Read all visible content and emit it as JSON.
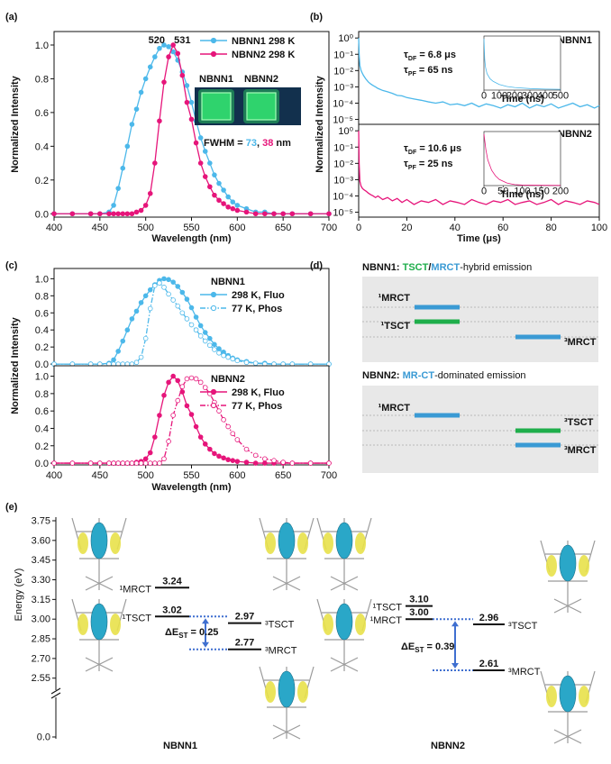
{
  "chart_data": [
    {
      "type": "line",
      "label": "(a)",
      "xlabel": "Wavelength (nm)",
      "ylabel": "Normalized Intensity",
      "xlim": [
        400,
        700
      ],
      "xticks": [
        400,
        450,
        500,
        550,
        600,
        650,
        700
      ],
      "ylim": [
        -0.02,
        1.08
      ],
      "yticks": [
        {
          "value": 0,
          "label": "0.0"
        },
        0.2,
        0.4,
        0.6,
        0.8,
        {
          "value": 1,
          "label": "1.0"
        }
      ],
      "legend": "upper right",
      "x": [
        400,
        420,
        440,
        450,
        460,
        465,
        470,
        475,
        480,
        485,
        490,
        495,
        500,
        505,
        510,
        515,
        520,
        525,
        530,
        535,
        540,
        545,
        550,
        555,
        560,
        565,
        570,
        575,
        580,
        585,
        590,
        595,
        600,
        610,
        620,
        630,
        640,
        650,
        660,
        680,
        700
      ],
      "series": [
        {
          "name": "NBNN1 298 K",
          "color": "#4cb8ea",
          "marker": "filled",
          "values": [
            0,
            0,
            0,
            0,
            0.01,
            0.05,
            0.15,
            0.27,
            0.4,
            0.53,
            0.62,
            0.72,
            0.8,
            0.87,
            0.93,
            0.98,
            1.0,
            0.99,
            0.96,
            0.91,
            0.84,
            0.76,
            0.66,
            0.55,
            0.45,
            0.37,
            0.3,
            0.23,
            0.18,
            0.14,
            0.1,
            0.07,
            0.05,
            0.03,
            0.01,
            0.01,
            0,
            0,
            0,
            0,
            0
          ]
        },
        {
          "name": "NBNN2 298 K",
          "color": "#e6157a",
          "marker": "filled",
          "values": [
            0,
            0,
            0,
            0,
            0,
            0,
            0,
            0,
            0,
            0,
            0.01,
            0.02,
            0.05,
            0.12,
            0.3,
            0.55,
            0.78,
            0.93,
            1.0,
            0.95,
            0.82,
            0.66,
            0.56,
            0.42,
            0.3,
            0.22,
            0.16,
            0.11,
            0.08,
            0.06,
            0.04,
            0.03,
            0.02,
            0.01,
            0,
            0,
            0,
            0,
            0,
            0,
            0
          ]
        }
      ],
      "peak_labels": [
        {
          "value": 520,
          "color": "#4cb8ea"
        },
        {
          "value": 531,
          "color": "#e6157a"
        }
      ],
      "photo_labels": [
        "NBNN1",
        "NBNN2"
      ],
      "fwhm_text": [
        {
          "text": "FWHM = "
        },
        {
          "text": "73",
          "color": "#4cb8ea"
        },
        {
          "text": ", "
        },
        {
          "text": "38",
          "color": "#e6157a"
        },
        {
          "text": " nm"
        }
      ]
    },
    {
      "type": "line",
      "label": "(b)",
      "ylabel": "Normalized Intensity",
      "yscale": "log",
      "legend": "upper right",
      "xlim": [
        0,
        100
      ],
      "ylim": [
        5e-06,
        2.5
      ],
      "yticks": [
        {
          "value": 1,
          "label": "10⁰"
        },
        {
          "value": 0.1,
          "label": "10⁻¹"
        },
        {
          "value": 0.01,
          "label": "10⁻²"
        },
        {
          "value": 0.001,
          "label": "10⁻³"
        },
        {
          "value": 0.0001,
          "label": "10⁻⁴"
        },
        {
          "value": 1e-05,
          "label": "10⁻⁵"
        }
      ],
      "x": [
        0,
        0.2,
        0.5,
        1,
        1.5,
        2,
        3,
        4,
        5,
        6,
        7,
        8,
        10,
        12,
        14,
        16,
        18,
        20,
        23,
        26,
        29,
        32,
        35,
        38,
        41,
        44,
        47,
        50,
        53,
        56,
        59,
        62,
        65,
        68,
        71,
        74,
        77,
        80,
        83,
        86,
        89,
        92,
        95,
        98,
        100
      ],
      "series": [
        {
          "name": "NBNN1",
          "color": "#4cb8ea",
          "values": [
            1,
            0.1,
            0.02,
            0.01,
            0.007,
            0.005,
            0.003,
            0.002,
            0.0015,
            0.0012,
            0.001,
            0.0008,
            0.0006,
            0.0005,
            0.0004,
            0.0003,
            0.00028,
            0.00022,
            0.00018,
            0.00015,
            0.00012,
            0.0001,
            0.00012,
            8e-05,
            9e-05,
            7e-05,
            0.0001,
            6e-05,
            9e-05,
            7e-05,
            5e-05,
            8e-05,
            6e-05,
            0.0001,
            5e-05,
            8e-05,
            6e-05,
            9e-05,
            5e-05,
            7e-05,
            0.0001,
            6e-05,
            8e-05,
            5e-05,
            7e-05
          ]
        }
      ],
      "annotations": [
        {
          "symbol": "τ",
          "sub": "DF",
          "rest": " = 6.8 μs"
        },
        {
          "symbol": "τ",
          "sub": "PF",
          "rest": " = 65 ns"
        }
      ]
    },
    {
      "type": "line",
      "xlabel": "Time (μs)",
      "yscale": "log",
      "legend": "upper right",
      "xlim": [
        0,
        100
      ],
      "xticks": [
        0,
        20,
        40,
        60,
        80,
        100
      ],
      "ylim": [
        5e-06,
        2.5
      ],
      "yticks": [
        {
          "value": 1,
          "label": "10⁰"
        },
        {
          "value": 0.1,
          "label": "10⁻¹"
        },
        {
          "value": 0.01,
          "label": "10⁻²"
        },
        {
          "value": 0.001,
          "label": "10⁻³"
        },
        {
          "value": 0.0001,
          "label": "10⁻⁴"
        },
        {
          "value": 1e-05,
          "label": "10⁻⁵"
        }
      ],
      "x": [
        0,
        0.2,
        0.5,
        1,
        1.5,
        2,
        3,
        4,
        5,
        6,
        7,
        8,
        10,
        12,
        14,
        16,
        18,
        20,
        23,
        26,
        29,
        32,
        35,
        38,
        41,
        44,
        47,
        50,
        53,
        56,
        59,
        62,
        65,
        68,
        71,
        74,
        77,
        80,
        83,
        86,
        89,
        92,
        95,
        98,
        100
      ],
      "series": [
        {
          "name": "NBNN2",
          "color": "#e6157a",
          "values": [
            1,
            0.01,
            0.0008,
            0.0004,
            0.0003,
            0.00025,
            0.0002,
            0.00015,
            0.00012,
            0.0001,
            8e-05,
            0.0001,
            6e-05,
            8e-05,
            5e-05,
            7e-05,
            4e-05,
            6e-05,
            3e-05,
            5e-05,
            4e-05,
            6e-05,
            3e-05,
            5e-05,
            4e-05,
            3e-05,
            6e-05,
            4e-05,
            3e-05,
            5e-05,
            4e-05,
            6e-05,
            3e-05,
            4e-05,
            5e-05,
            3e-05,
            4e-05,
            6e-05,
            3e-05,
            5e-05,
            4e-05,
            3e-05,
            5e-05,
            4e-05,
            3e-05
          ]
        }
      ],
      "annotations": [
        {
          "symbol": "τ",
          "sub": "DF",
          "rest": " = 10.6 μs"
        },
        {
          "symbol": "τ",
          "sub": "PF",
          "rest": " = 25 ns"
        }
      ]
    },
    {
      "type": "line",
      "xlabel": "Time (ns)",
      "xlim": [
        0,
        500
      ],
      "xticks": [
        0,
        100,
        200,
        300,
        400,
        500
      ],
      "ylim": [
        0,
        1.05
      ],
      "x": [
        0,
        5,
        10,
        20,
        40,
        60,
        100,
        150,
        200,
        300,
        400,
        500
      ],
      "series": [
        {
          "color": "#4cb8ea",
          "values": [
            1,
            0.6,
            0.45,
            0.32,
            0.22,
            0.17,
            0.11,
            0.07,
            0.05,
            0.03,
            0.02,
            0.015
          ]
        }
      ]
    },
    {
      "type": "line",
      "xlabel": "Time (ns)",
      "xlim": [
        0,
        200
      ],
      "xticks": [
        0,
        50,
        100,
        150,
        200
      ],
      "ylim": [
        0,
        1.05
      ],
      "x": [
        0,
        5,
        10,
        20,
        30,
        40,
        60,
        80,
        100,
        150,
        200
      ],
      "series": [
        {
          "color": "#e6157a",
          "values": [
            1,
            0.7,
            0.5,
            0.3,
            0.19,
            0.12,
            0.05,
            0.02,
            0.01,
            0.005,
            0.003
          ]
        }
      ]
    },
    {
      "type": "line",
      "label": "(c)",
      "ylabel": "Normalized Intensity",
      "legend": "upper right",
      "legend_title": "NBNN1",
      "xlim": [
        400,
        700
      ],
      "ylim": [
        -0.02,
        1.12
      ],
      "yticks": [
        {
          "value": 0,
          "label": "0.0"
        },
        0.2,
        0.4,
        0.6,
        0.8,
        {
          "value": 1,
          "label": "1.0"
        }
      ],
      "x": [
        400,
        420,
        440,
        450,
        460,
        465,
        470,
        475,
        480,
        485,
        490,
        495,
        500,
        505,
        510,
        515,
        520,
        525,
        530,
        535,
        540,
        545,
        550,
        555,
        560,
        565,
        570,
        575,
        580,
        585,
        590,
        595,
        600,
        610,
        620,
        630,
        640,
        650,
        660,
        680,
        700
      ],
      "series": [
        {
          "name": "298 K, Fluo",
          "color": "#4cb8ea",
          "marker": "filled",
          "values": [
            0,
            0,
            0,
            0,
            0.01,
            0.05,
            0.15,
            0.27,
            0.4,
            0.53,
            0.62,
            0.72,
            0.8,
            0.87,
            0.93,
            0.98,
            1.0,
            0.99,
            0.96,
            0.91,
            0.84,
            0.76,
            0.66,
            0.55,
            0.45,
            0.37,
            0.3,
            0.23,
            0.18,
            0.14,
            0.1,
            0.07,
            0.05,
            0.03,
            0.01,
            0.01,
            0,
            0,
            0,
            0,
            0
          ]
        },
        {
          "name": "77 K, Phos",
          "color": "#4cb8ea",
          "marker": "open",
          "dash": "dashdot",
          "values": [
            0,
            0,
            0,
            0,
            0,
            0,
            0,
            0,
            0,
            0,
            0.02,
            0.08,
            0.3,
            0.65,
            0.92,
            0.95,
            0.9,
            0.82,
            0.75,
            0.68,
            0.6,
            0.53,
            0.46,
            0.4,
            0.33,
            0.27,
            0.22,
            0.17,
            0.13,
            0.1,
            0.08,
            0.06,
            0.04,
            0.02,
            0.01,
            0,
            0,
            0,
            0,
            0,
            0
          ]
        }
      ]
    },
    {
      "type": "line",
      "xlabel": "Wavelength (nm)",
      "legend": "upper right",
      "legend_title": "NBNN2",
      "xlim": [
        400,
        700
      ],
      "xticks": [
        400,
        450,
        500,
        550,
        600,
        650,
        700
      ],
      "ylim": [
        -0.02,
        1.12
      ],
      "yticks": [
        {
          "value": 0,
          "label": "0.0"
        },
        0.2,
        0.4,
        0.6,
        0.8,
        {
          "value": 1,
          "label": "1.0"
        }
      ],
      "x": [
        400,
        420,
        440,
        450,
        460,
        465,
        470,
        475,
        480,
        485,
        490,
        495,
        500,
        505,
        510,
        515,
        520,
        525,
        530,
        535,
        540,
        545,
        550,
        555,
        560,
        565,
        570,
        575,
        580,
        585,
        590,
        595,
        600,
        610,
        620,
        630,
        640,
        650,
        660,
        680,
        700
      ],
      "series": [
        {
          "name": "298 K, Fluo",
          "color": "#e6157a",
          "marker": "filled",
          "values": [
            0,
            0,
            0,
            0,
            0,
            0,
            0,
            0,
            0,
            0,
            0.01,
            0.02,
            0.05,
            0.12,
            0.3,
            0.55,
            0.78,
            0.93,
            1.0,
            0.95,
            0.82,
            0.66,
            0.56,
            0.42,
            0.3,
            0.22,
            0.16,
            0.11,
            0.08,
            0.06,
            0.04,
            0.03,
            0.02,
            0.01,
            0,
            0,
            0,
            0,
            0,
            0,
            0
          ]
        },
        {
          "name": "77 K, Phos",
          "color": "#e6157a",
          "marker": "open",
          "dash": "dashdot",
          "values": [
            0,
            0,
            0,
            0,
            0,
            0,
            0,
            0,
            0,
            0,
            0,
            0,
            0,
            0,
            0,
            0,
            0.05,
            0.25,
            0.55,
            0.72,
            0.88,
            0.97,
            0.98,
            0.97,
            0.93,
            0.87,
            0.8,
            0.7,
            0.6,
            0.5,
            0.42,
            0.34,
            0.27,
            0.16,
            0.09,
            0.05,
            0.03,
            0.01,
            0,
            0,
            0
          ]
        }
      ]
    },
    {
      "type": "energy-levels",
      "label": "(e)",
      "ylabel": "Energy (eV)",
      "axis_break": true,
      "ylim": [
        2.5,
        3.75
      ],
      "yticks": [
        {
          "value": 0,
          "label": "0.0"
        },
        2.55,
        {
          "value": 2.7,
          "label": "2.70"
        },
        2.85,
        {
          "value": 3,
          "label": "3.00"
        },
        3.15,
        {
          "value": 3.3,
          "label": "3.30"
        },
        3.45,
        {
          "value": 3.6,
          "label": "3.60"
        },
        3.75
      ],
      "groups": [
        {
          "name": "NBNN1",
          "labels": [
            "¹MRCT",
            "¹TSCT",
            "³TSCT",
            "³MRCT"
          ],
          "values": [
            3.24,
            3.02,
            2.97,
            2.77
          ],
          "value_labels": [
            "3.24",
            "3.02",
            "2.97",
            "2.77"
          ],
          "gap": {
            "symbol": "ΔE",
            "sub": "ST",
            "rest": " = 0.25"
          }
        },
        {
          "name": "NBNN2",
          "labels": [
            "¹TSCT",
            "¹MRCT",
            "³TSCT",
            "³MRCT"
          ],
          "values": [
            3.1,
            3.0,
            2.96,
            2.61
          ],
          "value_labels": [
            "3.10",
            "3.00",
            "2.96",
            "2.61"
          ],
          "gap": {
            "symbol": "ΔE",
            "sub": "ST",
            "rest": " = 0.39"
          }
        }
      ]
    }
  ],
  "diagram": {
    "label": "(d)",
    "boxes": [
      {
        "title": [
          {
            "text": "NBNN1: ",
            "bold": true
          },
          {
            "text": "TSCT",
            "color": "#1fae4b",
            "bold": true
          },
          {
            "text": "/",
            "bold": true
          },
          {
            "text": "MRCT",
            "color": "#3a9ad4",
            "bold": true
          },
          {
            "text": "-hybrid emission"
          }
        ],
        "levels": [
          {
            "label": "¹MRCT",
            "color": "#3a9ad4"
          },
          {
            "label": "¹TSCT",
            "color": "#1fae4b"
          },
          {
            "label": "³MRCT",
            "color": "#3a9ad4"
          }
        ]
      },
      {
        "title": [
          {
            "text": "NBNN2: ",
            "bold": true
          },
          {
            "text": "MR-CT",
            "color": "#3a9ad4",
            "bold": true
          },
          {
            "text": "-dominated emission"
          }
        ],
        "levels": [
          {
            "label": "¹MRCT",
            "color": "#3a9ad4"
          },
          {
            "label": "³TSCT",
            "color": "#1fae4b"
          },
          {
            "label": "³MRCT",
            "color": "#3a9ad4"
          }
        ]
      }
    ]
  }
}
